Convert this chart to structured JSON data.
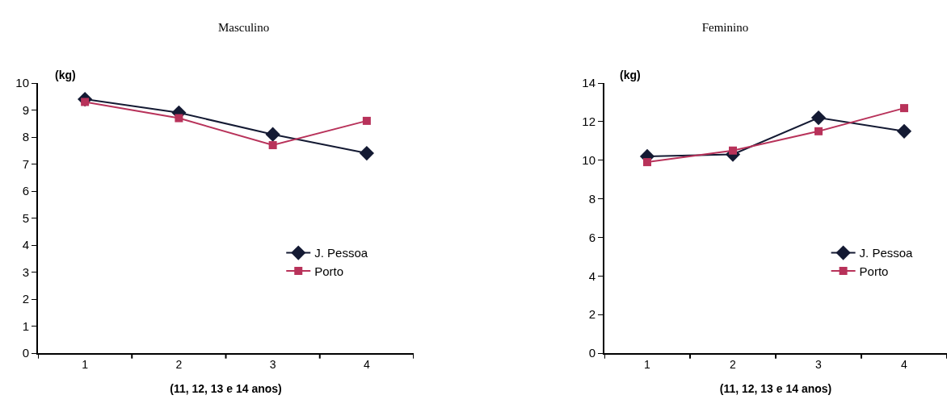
{
  "chart_data": [
    {
      "type": "line",
      "title": "Masculino",
      "xlabel": "(11, 12, 13 e 14 anos)",
      "ylabel": "(kg)",
      "categories": [
        "1",
        "2",
        "3",
        "4"
      ],
      "ylim": [
        0,
        10
      ],
      "yticks": [
        0,
        1,
        2,
        3,
        4,
        5,
        6,
        7,
        8,
        9,
        10
      ],
      "grid": false,
      "legend": "right",
      "series": [
        {
          "name": "J. Pessoa",
          "color": "#141a33",
          "marker": "diamond",
          "values": [
            9.4,
            8.9,
            8.1,
            7.4
          ]
        },
        {
          "name": "Porto",
          "color": "#b8325a",
          "marker": "square",
          "values": [
            9.3,
            8.7,
            7.7,
            8.6
          ]
        }
      ]
    },
    {
      "type": "line",
      "title": "Feminino",
      "xlabel": "(11, 12, 13 e 14 anos)",
      "ylabel": "(kg)",
      "categories": [
        "1",
        "2",
        "3",
        "4"
      ],
      "ylim": [
        0,
        14
      ],
      "yticks": [
        0,
        2,
        4,
        6,
        8,
        10,
        12,
        14
      ],
      "grid": false,
      "legend": "right",
      "series": [
        {
          "name": "J. Pessoa",
          "color": "#141a33",
          "marker": "diamond",
          "values": [
            10.2,
            10.3,
            12.2,
            11.5
          ]
        },
        {
          "name": "Porto",
          "color": "#b8325a",
          "marker": "square",
          "values": [
            9.9,
            10.5,
            11.5,
            12.7
          ]
        }
      ]
    }
  ]
}
